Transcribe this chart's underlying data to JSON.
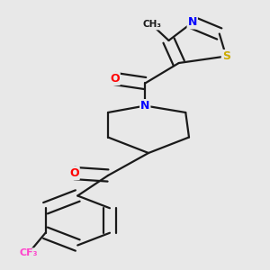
{
  "background_color": "#e8e8e8",
  "bond_color": "#1a1a1a",
  "atom_colors": {
    "N": "#0000ff",
    "O": "#ff0000",
    "S": "#ccaa00",
    "F": "#ff44cc",
    "C": "#1a1a1a"
  },
  "figsize": [
    3.0,
    3.0
  ],
  "dpi": 100
}
